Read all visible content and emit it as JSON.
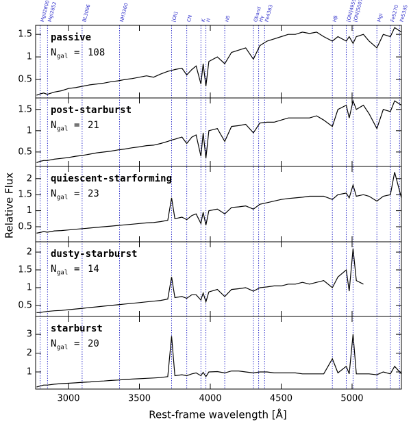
{
  "chart_data": {
    "type": "line",
    "y_label": "Relative Flux",
    "x_label": "Rest-frame wavelength [Å]",
    "ngal_symbol": "N",
    "ngal_subscript": "gal",
    "equals": "=",
    "color": "#000000",
    "line_color": "#3333cc",
    "xlim": [
      2768,
      5348
    ],
    "xticks": [
      3000,
      3500,
      4000,
      4500,
      5000
    ],
    "lines": [
      {
        "label": "MgII2800",
        "wavelength": 2800
      },
      {
        "label": "MgI2852",
        "wavelength": 2852
      },
      {
        "label": "BL3096",
        "wavelength": 3096
      },
      {
        "label": "NH3360",
        "wavelength": 3360
      },
      {
        "label": "[OII]",
        "wavelength": 3727
      },
      {
        "label": "CN",
        "wavelength": 3834
      },
      {
        "label": "K",
        "wavelength": 3934
      },
      {
        "label": "H",
        "wavelength": 3969
      },
      {
        "label": "Hδ",
        "wavelength": 4102
      },
      {
        "label": "Gband",
        "wavelength": 4304
      },
      {
        "label": "Hγ",
        "wavelength": 4341
      },
      {
        "label": "Fe4383",
        "wavelength": 4383
      },
      {
        "label": "Hβ",
        "wavelength": 4861
      },
      {
        "label": "[OIII]4959",
        "wavelength": 4959
      },
      {
        "label": "[OIII]5007",
        "wavelength": 5007
      },
      {
        "label": "MgI",
        "wavelength": 5175
      },
      {
        "label": "Fe5270",
        "wavelength": 5270
      },
      {
        "label": "Fe5335",
        "wavelength": 5335
      }
    ],
    "x": [
      2775,
      2800,
      2825,
      2850,
      2900,
      2950,
      3000,
      3050,
      3100,
      3150,
      3200,
      3250,
      3300,
      3350,
      3400,
      3450,
      3500,
      3550,
      3600,
      3650,
      3700,
      3727,
      3750,
      3800,
      3834,
      3870,
      3900,
      3934,
      3950,
      3969,
      3990,
      4050,
      4102,
      4150,
      4200,
      4250,
      4304,
      4350,
      4400,
      4450,
      4500,
      4550,
      4600,
      4650,
      4700,
      4750,
      4800,
      4861,
      4900,
      4959,
      4980,
      5007,
      5030,
      5080,
      5120,
      5175,
      5220,
      5270,
      5300,
      5348
    ],
    "panels": [
      {
        "name": "passive",
        "n_gal": 108,
        "ylim": [
          0.09,
          1.7
        ],
        "yticks": [
          0.5,
          1,
          1.5
        ],
        "values": [
          0.15,
          0.18,
          0.2,
          0.17,
          0.22,
          0.25,
          0.3,
          0.32,
          0.35,
          0.38,
          0.4,
          0.42,
          0.45,
          0.47,
          0.5,
          0.52,
          0.55,
          0.58,
          0.55,
          0.62,
          0.68,
          0.7,
          0.72,
          0.75,
          0.6,
          0.72,
          0.8,
          0.4,
          0.85,
          0.35,
          0.9,
          1.0,
          0.85,
          1.1,
          1.15,
          1.2,
          0.95,
          1.25,
          1.35,
          1.4,
          1.45,
          1.5,
          1.5,
          1.55,
          1.52,
          1.55,
          1.45,
          1.35,
          1.45,
          1.35,
          1.45,
          1.3,
          1.45,
          1.5,
          1.35,
          1.2,
          1.5,
          1.45,
          1.65,
          1.55
        ]
      },
      {
        "name": "post-starburst",
        "n_gal": 21,
        "ylim": [
          0.16,
          1.77
        ],
        "yticks": [
          0.5,
          1,
          1.5
        ],
        "values": [
          0.25,
          0.28,
          0.3,
          0.3,
          0.33,
          0.35,
          0.37,
          0.4,
          0.42,
          0.45,
          0.48,
          0.5,
          0.52,
          0.55,
          0.57,
          0.6,
          0.62,
          0.65,
          0.66,
          0.7,
          0.75,
          0.78,
          0.8,
          0.85,
          0.7,
          0.85,
          0.9,
          0.4,
          0.95,
          0.35,
          1.0,
          1.05,
          0.75,
          1.1,
          1.12,
          1.15,
          0.95,
          1.18,
          1.2,
          1.2,
          1.25,
          1.3,
          1.3,
          1.3,
          1.3,
          1.35,
          1.25,
          1.1,
          1.5,
          1.6,
          1.3,
          1.7,
          1.5,
          1.6,
          1.4,
          1.05,
          1.5,
          1.45,
          1.7,
          1.6
        ]
      },
      {
        "name": "quiescent-starforming",
        "n_gal": 23,
        "ylim": [
          0.03,
          2.38
        ],
        "yticks": [
          0.5,
          1,
          1.5,
          2
        ],
        "values": [
          0.3,
          0.32,
          0.35,
          0.33,
          0.37,
          0.38,
          0.4,
          0.42,
          0.44,
          0.46,
          0.48,
          0.5,
          0.52,
          0.54,
          0.56,
          0.58,
          0.6,
          0.62,
          0.63,
          0.66,
          0.7,
          1.4,
          0.75,
          0.8,
          0.72,
          0.85,
          0.9,
          0.6,
          0.95,
          0.55,
          1.0,
          1.05,
          0.9,
          1.1,
          1.12,
          1.15,
          1.05,
          1.2,
          1.25,
          1.3,
          1.35,
          1.38,
          1.4,
          1.42,
          1.45,
          1.45,
          1.45,
          1.35,
          1.5,
          1.55,
          1.4,
          1.8,
          1.45,
          1.5,
          1.45,
          1.3,
          1.45,
          1.5,
          2.2,
          1.4
        ]
      },
      {
        "name": "dusty-starburst",
        "n_gal": 14,
        "ylim": [
          0.19,
          2.29
        ],
        "yticks": [
          0.5,
          1,
          1.5,
          2
        ],
        "values": [
          0.3,
          0.3,
          0.32,
          0.33,
          0.35,
          0.36,
          0.38,
          0.4,
          0.42,
          0.44,
          0.46,
          0.48,
          0.5,
          0.52,
          0.54,
          0.56,
          0.58,
          0.6,
          0.62,
          0.64,
          0.68,
          1.3,
          0.72,
          0.75,
          0.7,
          0.8,
          0.8,
          0.65,
          0.85,
          0.6,
          0.88,
          0.95,
          0.75,
          0.95,
          0.97,
          1.0,
          0.9,
          1.0,
          1.02,
          1.05,
          1.05,
          1.1,
          1.1,
          1.15,
          1.1,
          1.15,
          1.2,
          1.0,
          1.3,
          1.5,
          0.9,
          2.1,
          1.2,
          1.1,
          null,
          null,
          null,
          null,
          null,
          null
        ]
      },
      {
        "name": "starburst",
        "n_gal": 20,
        "ylim": [
          0.09,
          3.95
        ],
        "yticks": [
          1,
          2,
          3
        ],
        "values": [
          0.2,
          0.25,
          0.3,
          0.3,
          0.35,
          0.38,
          0.4,
          0.42,
          0.45,
          0.47,
          0.5,
          0.52,
          0.55,
          0.57,
          0.6,
          0.62,
          0.64,
          0.66,
          0.68,
          0.7,
          0.75,
          2.9,
          0.8,
          0.85,
          0.8,
          0.9,
          0.95,
          0.8,
          0.98,
          0.75,
          1.0,
          1.02,
          0.95,
          1.05,
          1.05,
          1.0,
          0.95,
          1.0,
          1.0,
          0.95,
          0.95,
          0.95,
          0.95,
          0.9,
          0.9,
          0.9,
          0.9,
          1.7,
          0.95,
          1.3,
          0.9,
          3.0,
          0.9,
          0.9,
          0.9,
          0.85,
          1.0,
          0.9,
          1.3,
          0.9
        ]
      }
    ]
  }
}
